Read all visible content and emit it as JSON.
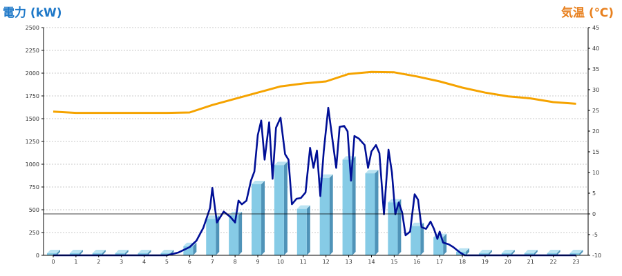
{
  "chart_data": {
    "type": "bar",
    "title_left": "電力 (kW)",
    "title_right": "気温 (℃)",
    "colors": {
      "bar_face": "#86cbe6",
      "bar_side": "#4f93b8",
      "bar_top": "#b9e3f2",
      "power_line": "#000f96",
      "temp_line": "#f5a300",
      "grid": "#b8b8b8",
      "axis": "#000000"
    },
    "x": {
      "categories": [
        "0",
        "1",
        "2",
        "3",
        "4",
        "5",
        "6",
        "7",
        "8",
        "9",
        "10",
        "11",
        "12",
        "13",
        "14",
        "15",
        "16",
        "17",
        "18",
        "19",
        "20",
        "21",
        "22",
        "23"
      ]
    },
    "y_left": {
      "label": "電力 (kW)",
      "ylim": [
        0,
        2500
      ],
      "ticks": [
        "0",
        "250",
        "500",
        "750",
        "1000",
        "1250",
        "1500",
        "1750",
        "2000",
        "2250",
        "2500"
      ]
    },
    "y_right": {
      "label": "気温 (℃)",
      "ylim": [
        -10,
        45
      ],
      "ticks": [
        "-10",
        "-5",
        "0",
        "5",
        "10",
        "15",
        "20",
        "25",
        "30",
        "35",
        "40",
        "45"
      ],
      "reference_line": 0
    },
    "grid": true,
    "series": [
      {
        "type": "bar",
        "axis": "left",
        "values": [
          0,
          0,
          0,
          0,
          0,
          0,
          100,
          400,
          440,
          780,
          990,
          510,
          850,
          1050,
          900,
          580,
          320,
          200,
          40,
          0,
          0,
          0,
          0,
          0
        ]
      },
      {
        "type": "line",
        "axis": "left",
        "points": [
          [
            0,
            0
          ],
          [
            1,
            0
          ],
          [
            2,
            0
          ],
          [
            3,
            0
          ],
          [
            4,
            0
          ],
          [
            5,
            0
          ],
          [
            5.5,
            30
          ],
          [
            6,
            90
          ],
          [
            6.3,
            160
          ],
          [
            6.6,
            300
          ],
          [
            6.9,
            520
          ],
          [
            7.0,
            740
          ],
          [
            7.2,
            360
          ],
          [
            7.5,
            480
          ],
          [
            7.8,
            420
          ],
          [
            8.0,
            360
          ],
          [
            8.15,
            600
          ],
          [
            8.3,
            560
          ],
          [
            8.5,
            600
          ],
          [
            8.7,
            820
          ],
          [
            8.85,
            920
          ],
          [
            9.0,
            1320
          ],
          [
            9.15,
            1480
          ],
          [
            9.3,
            1050
          ],
          [
            9.5,
            1460
          ],
          [
            9.65,
            840
          ],
          [
            9.8,
            1400
          ],
          [
            10.0,
            1510
          ],
          [
            10.2,
            1110
          ],
          [
            10.35,
            1050
          ],
          [
            10.5,
            560
          ],
          [
            10.7,
            620
          ],
          [
            10.9,
            630
          ],
          [
            11.1,
            690
          ],
          [
            11.3,
            1180
          ],
          [
            11.45,
            960
          ],
          [
            11.6,
            1150
          ],
          [
            11.75,
            650
          ],
          [
            11.9,
            1140
          ],
          [
            12.1,
            1620
          ],
          [
            12.3,
            1240
          ],
          [
            12.45,
            960
          ],
          [
            12.6,
            1410
          ],
          [
            12.8,
            1420
          ],
          [
            12.95,
            1360
          ],
          [
            13.1,
            820
          ],
          [
            13.25,
            1310
          ],
          [
            13.45,
            1280
          ],
          [
            13.7,
            1210
          ],
          [
            13.85,
            960
          ],
          [
            14.0,
            1140
          ],
          [
            14.2,
            1210
          ],
          [
            14.35,
            1120
          ],
          [
            14.55,
            450
          ],
          [
            14.75,
            1160
          ],
          [
            14.9,
            910
          ],
          [
            15.05,
            450
          ],
          [
            15.2,
            580
          ],
          [
            15.35,
            470
          ],
          [
            15.5,
            220
          ],
          [
            15.7,
            260
          ],
          [
            15.9,
            670
          ],
          [
            16.05,
            610
          ],
          [
            16.2,
            310
          ],
          [
            16.4,
            290
          ],
          [
            16.6,
            370
          ],
          [
            16.75,
            290
          ],
          [
            16.9,
            180
          ],
          [
            17.0,
            260
          ],
          [
            17.15,
            140
          ],
          [
            17.4,
            120
          ],
          [
            17.6,
            90
          ],
          [
            17.75,
            60
          ],
          [
            17.9,
            30
          ],
          [
            18.1,
            0
          ],
          [
            19,
            0
          ],
          [
            20,
            0
          ],
          [
            21,
            0
          ],
          [
            22,
            0
          ],
          [
            23,
            0
          ]
        ]
      },
      {
        "type": "line",
        "axis": "right",
        "points": [
          [
            0,
            24.7
          ],
          [
            1,
            24.4
          ],
          [
            2,
            24.4
          ],
          [
            3,
            24.4
          ],
          [
            4,
            24.4
          ],
          [
            5,
            24.4
          ],
          [
            6,
            24.5
          ],
          [
            7,
            26.3
          ],
          [
            8,
            27.8
          ],
          [
            9,
            29.3
          ],
          [
            10,
            30.8
          ],
          [
            11,
            31.5
          ],
          [
            12,
            32.0
          ],
          [
            13,
            33.8
          ],
          [
            14,
            34.3
          ],
          [
            15,
            34.2
          ],
          [
            16,
            33.2
          ],
          [
            17,
            32.0
          ],
          [
            18,
            30.5
          ],
          [
            19,
            29.3
          ],
          [
            20,
            28.4
          ],
          [
            21,
            27.9
          ],
          [
            22,
            27.0
          ],
          [
            23,
            26.6
          ]
        ]
      }
    ]
  }
}
